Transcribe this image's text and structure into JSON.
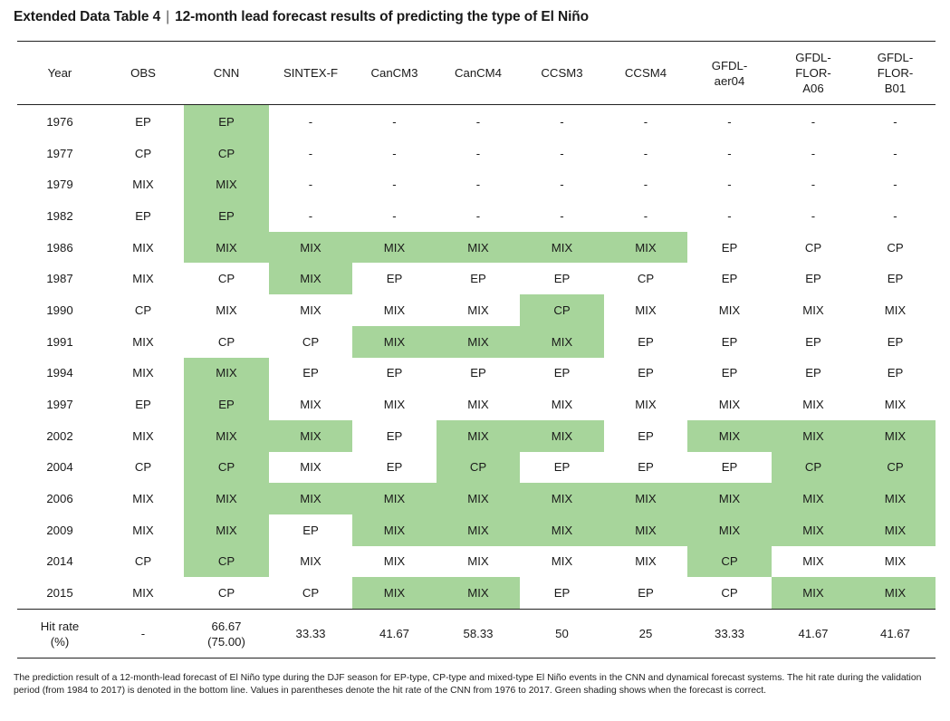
{
  "title": {
    "label": "Extended Data Table 4",
    "separator": "|",
    "text": "12-month lead forecast results of predicting the type of El Niño"
  },
  "columns": [
    "Year",
    "OBS",
    "CNN",
    "SINTEX-F",
    "CanCM3",
    "CanCM4",
    "CCSM3",
    "CCSM4",
    "GFDL-\naer04",
    "GFDL-\nFLOR-\nA06",
    "GFDL-\nFLOR-\nB01"
  ],
  "rows": [
    {
      "year": "1976",
      "obs": "EP",
      "cells": [
        "EP",
        "-",
        "-",
        "-",
        "-",
        "-",
        "-",
        "-",
        "-"
      ],
      "hits": [
        true,
        false,
        false,
        false,
        false,
        false,
        false,
        false,
        false
      ]
    },
    {
      "year": "1977",
      "obs": "CP",
      "cells": [
        "CP",
        "-",
        "-",
        "-",
        "-",
        "-",
        "-",
        "-",
        "-"
      ],
      "hits": [
        true,
        false,
        false,
        false,
        false,
        false,
        false,
        false,
        false
      ]
    },
    {
      "year": "1979",
      "obs": "MIX",
      "cells": [
        "MIX",
        "-",
        "-",
        "-",
        "-",
        "-",
        "-",
        "-",
        "-"
      ],
      "hits": [
        true,
        false,
        false,
        false,
        false,
        false,
        false,
        false,
        false
      ]
    },
    {
      "year": "1982",
      "obs": "EP",
      "cells": [
        "EP",
        "-",
        "-",
        "-",
        "-",
        "-",
        "-",
        "-",
        "-"
      ],
      "hits": [
        true,
        false,
        false,
        false,
        false,
        false,
        false,
        false,
        false
      ]
    },
    {
      "year": "1986",
      "obs": "MIX",
      "cells": [
        "MIX",
        "MIX",
        "MIX",
        "MIX",
        "MIX",
        "MIX",
        "EP",
        "CP",
        "CP"
      ],
      "hits": [
        true,
        true,
        true,
        true,
        true,
        true,
        false,
        false,
        false
      ]
    },
    {
      "year": "1987",
      "obs": "MIX",
      "cells": [
        "CP",
        "MIX",
        "EP",
        "EP",
        "EP",
        "CP",
        "EP",
        "EP",
        "EP"
      ],
      "hits": [
        false,
        true,
        false,
        false,
        false,
        false,
        false,
        false,
        false
      ]
    },
    {
      "year": "1990",
      "obs": "CP",
      "cells": [
        "MIX",
        "MIX",
        "MIX",
        "MIX",
        "CP",
        "MIX",
        "MIX",
        "MIX",
        "MIX"
      ],
      "hits": [
        false,
        false,
        false,
        false,
        true,
        false,
        false,
        false,
        false
      ]
    },
    {
      "year": "1991",
      "obs": "MIX",
      "cells": [
        "CP",
        "CP",
        "MIX",
        "MIX",
        "MIX",
        "EP",
        "EP",
        "EP",
        "EP"
      ],
      "hits": [
        false,
        false,
        true,
        true,
        true,
        false,
        false,
        false,
        false
      ]
    },
    {
      "year": "1994",
      "obs": "MIX",
      "cells": [
        "MIX",
        "EP",
        "EP",
        "EP",
        "EP",
        "EP",
        "EP",
        "EP",
        "EP"
      ],
      "hits": [
        true,
        false,
        false,
        false,
        false,
        false,
        false,
        false,
        false
      ]
    },
    {
      "year": "1997",
      "obs": "EP",
      "cells": [
        "EP",
        "MIX",
        "MIX",
        "MIX",
        "MIX",
        "MIX",
        "MIX",
        "MIX",
        "MIX"
      ],
      "hits": [
        true,
        false,
        false,
        false,
        false,
        false,
        false,
        false,
        false
      ]
    },
    {
      "year": "2002",
      "obs": "MIX",
      "cells": [
        "MIX",
        "MIX",
        "EP",
        "MIX",
        "MIX",
        "EP",
        "MIX",
        "MIX",
        "MIX"
      ],
      "hits": [
        true,
        true,
        false,
        true,
        true,
        false,
        true,
        true,
        true
      ]
    },
    {
      "year": "2004",
      "obs": "CP",
      "cells": [
        "CP",
        "MIX",
        "EP",
        "CP",
        "EP",
        "EP",
        "EP",
        "CP",
        "CP"
      ],
      "hits": [
        true,
        false,
        false,
        true,
        false,
        false,
        false,
        true,
        true
      ]
    },
    {
      "year": "2006",
      "obs": "MIX",
      "cells": [
        "MIX",
        "MIX",
        "MIX",
        "MIX",
        "MIX",
        "MIX",
        "MIX",
        "MIX",
        "MIX"
      ],
      "hits": [
        true,
        true,
        true,
        true,
        true,
        true,
        true,
        true,
        true
      ]
    },
    {
      "year": "2009",
      "obs": "MIX",
      "cells": [
        "MIX",
        "EP",
        "MIX",
        "MIX",
        "MIX",
        "MIX",
        "MIX",
        "MIX",
        "MIX"
      ],
      "hits": [
        true,
        false,
        true,
        true,
        true,
        true,
        true,
        true,
        true
      ]
    },
    {
      "year": "2014",
      "obs": "CP",
      "cells": [
        "CP",
        "MIX",
        "MIX",
        "MIX",
        "MIX",
        "MIX",
        "CP",
        "MIX",
        "MIX"
      ],
      "hits": [
        true,
        false,
        false,
        false,
        false,
        false,
        true,
        false,
        false
      ]
    },
    {
      "year": "2015",
      "obs": "MIX",
      "cells": [
        "CP",
        "CP",
        "MIX",
        "MIX",
        "EP",
        "EP",
        "CP",
        "MIX",
        "MIX"
      ],
      "hits": [
        false,
        false,
        true,
        true,
        false,
        false,
        false,
        true,
        true
      ]
    }
  ],
  "hit_rate": {
    "label": "Hit rate\n(%)",
    "obs": "-",
    "values": [
      "66.67\n(75.00)",
      "33.33",
      "41.67",
      "58.33",
      "50",
      "25",
      "33.33",
      "41.67",
      "41.67"
    ]
  },
  "caption": "The prediction result of a 12-month-lead forecast of El Niño type during the DJF season for EP-type, CP-type and mixed-type El Niño events in the CNN and dynamical forecast systems. The hit rate during the validation period (from 1984 to 2017) is denoted in the bottom line. Values in parentheses denote the hit rate of the CNN from 1976 to 2017. Green shading shows when the forecast is correct.",
  "colors": {
    "hit_shading": "#a7d59b",
    "rule": "#222222"
  }
}
